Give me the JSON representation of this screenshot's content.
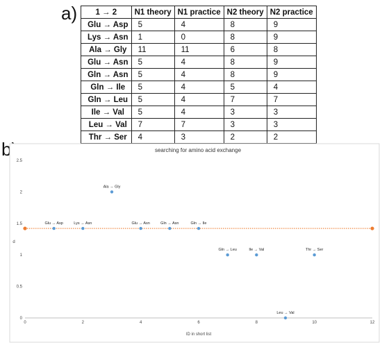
{
  "panel_labels": {
    "a": "a)",
    "b": "b)"
  },
  "table": {
    "headers": [
      "1 → 2",
      "N1 theory",
      "N1 practice",
      "N2 theory",
      "N2 practice"
    ],
    "rows": [
      [
        "Glu → Asp",
        "5",
        "4",
        "8",
        "9"
      ],
      [
        "Lys → Asn",
        "1",
        "0",
        "8",
        "9"
      ],
      [
        "Ala → Gly",
        "11",
        "11",
        "6",
        "8"
      ],
      [
        "Glu → Asn",
        "5",
        "4",
        "8",
        "9"
      ],
      [
        "Gln → Asn",
        "5",
        "4",
        "8",
        "9"
      ],
      [
        "Gln → Ile",
        "5",
        "4",
        "5",
        "4"
      ],
      [
        "Gln → Leu",
        "5",
        "4",
        "7",
        "7"
      ],
      [
        "Ile → Val",
        "5",
        "4",
        "3",
        "3"
      ],
      [
        "Leu → Val",
        "7",
        "7",
        "3",
        "3"
      ],
      [
        "Thr → Ser",
        "4",
        "3",
        "2",
        "2"
      ]
    ]
  },
  "chart_data": {
    "type": "scatter",
    "title": "searching for amino acid exchange",
    "xlabel": "ID  in short list",
    "ylabel": "d",
    "xlim": [
      0,
      12
    ],
    "ylim": [
      0,
      2.5
    ],
    "x_ticks": [
      "0",
      "2",
      "4",
      "6",
      "8",
      "10",
      "12"
    ],
    "y_ticks": [
      "0",
      "0.5",
      "1",
      "1.5",
      "2",
      "2.5"
    ],
    "point_color": "#5b9bd5",
    "threshold_color": "#ed7d31",
    "grid": false,
    "series": [
      {
        "points": [
          {
            "x": 1,
            "y": 1.42,
            "label": "Glu → Asp"
          },
          {
            "x": 2,
            "y": 1.42,
            "label": "Lys → Asn"
          },
          {
            "x": 3,
            "y": 2.0,
            "label": "Ala → Gly"
          },
          {
            "x": 4,
            "y": 1.42,
            "label": "Glu → Asn"
          },
          {
            "x": 5,
            "y": 1.42,
            "label": "Gln → Asn"
          },
          {
            "x": 6,
            "y": 1.42,
            "label": "Gln → Ile"
          },
          {
            "x": 7,
            "y": 1.0,
            "label": "Gln → Leu"
          },
          {
            "x": 8,
            "y": 1.0,
            "label": "Ile → Val"
          },
          {
            "x": 9,
            "y": 0.0,
            "label": "Leu → Val"
          },
          {
            "x": 10,
            "y": 1.0,
            "label": "Thr → Ser"
          }
        ]
      },
      {
        "type": "line",
        "style": "dotted",
        "x": [
          0,
          12
        ],
        "y": [
          1.42,
          1.42
        ]
      }
    ]
  }
}
